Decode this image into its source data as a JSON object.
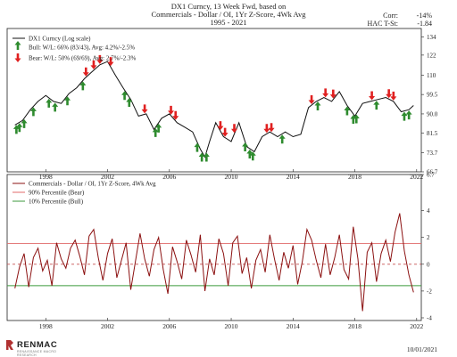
{
  "header": {
    "title_line1": "DX1 Curncy, 13 Week Fwd, based on",
    "title_line2": "Commercials - Dollar / OI, 1Yr Z-Score, 4Wk Avg",
    "title_line3": "1995 - 2021"
  },
  "stats": {
    "corr_label": "Corr:",
    "corr_value": "-14%",
    "hac_label": "HAC T-St:",
    "hac_value": "-1.84"
  },
  "footer": {
    "brand": "RENMAC",
    "brand_sub": "RENAISSANCE MACRO RESEARCH",
    "date": "10/01/2021"
  },
  "colors": {
    "price_line": "#111111",
    "bull": "#2e8b2e",
    "bear": "#e02020",
    "zscore_line": "#8b1010",
    "bear_threshold": "#e06a6a",
    "bull_threshold": "#3c9a3c",
    "zero_line": "#c85050",
    "logo_accent": "#b03030"
  },
  "chart_data": [
    {
      "type": "line",
      "panel": "top",
      "yscale": "log",
      "ylim": [
        66.7,
        140
      ],
      "xlim": [
        1995.5,
        2022.3
      ],
      "y_ticks": [
        "66.7",
        "73.7",
        "81.5",
        "90.0",
        "99.5",
        "110",
        "122",
        "134"
      ],
      "x_ticks": [
        "1998",
        "2002",
        "2006",
        "2010",
        "2014",
        "2018",
        "2022"
      ],
      "legend_position": "top-left",
      "legend": [
        {
          "label": "DX1 Curncy (Log scale)"
        },
        {
          "label": "Bull:  W/L: 66% (83/43), Avg: 4.2%/-2.5%"
        },
        {
          "label": "Bear:  W/L: 50% (69/69), Avg: 2.7%/-2.3%"
        }
      ],
      "series": [
        {
          "name": "DX1 Curncy (Log scale)",
          "x": [
            1996.0,
            1996.5,
            1997.0,
            1997.5,
            1998.0,
            1998.5,
            1999.0,
            1999.5,
            2000.0,
            2000.5,
            2001.0,
            2001.5,
            2002.0,
            2002.5,
            2003.0,
            2003.5,
            2004.0,
            2004.5,
            2005.0,
            2005.5,
            2006.0,
            2006.5,
            2007.0,
            2007.5,
            2008.0,
            2008.3,
            2008.6,
            2009.0,
            2009.5,
            2010.0,
            2010.5,
            2011.0,
            2011.5,
            2012.0,
            2012.5,
            2013.0,
            2013.5,
            2014.0,
            2014.5,
            2015.0,
            2015.5,
            2016.0,
            2016.5,
            2017.0,
            2017.5,
            2018.0,
            2018.5,
            2019.0,
            2019.5,
            2020.0,
            2020.5,
            2021.0,
            2021.5,
            2021.8
          ],
          "y": [
            85,
            87,
            92,
            96,
            99,
            96,
            95,
            100,
            103,
            108,
            112,
            116,
            118,
            110,
            103,
            97,
            89,
            90,
            83,
            88,
            90,
            86,
            84,
            82,
            75,
            72,
            78,
            86,
            80,
            78,
            86,
            76,
            74,
            80,
            82,
            80,
            82,
            80,
            81,
            93,
            96,
            98,
            96,
            101,
            94,
            89,
            95,
            96,
            97,
            98,
            96,
            91,
            92,
            94
          ]
        }
      ],
      "signals": {
        "bull_x": [
          1996.1,
          1996.3,
          1996.6,
          1997.2,
          1998.2,
          1998.6,
          1999.4,
          2000.4,
          2003.1,
          2003.4,
          2005.1,
          2005.3,
          2007.8,
          2008.1,
          2008.4,
          2010.9,
          2011.2,
          2011.4,
          2013.3,
          2015.6,
          2017.5,
          2017.9,
          2018.1,
          2019.4,
          2021.2,
          2021.5
        ],
        "bear_x": [
          2000.6,
          2001.1,
          2001.5,
          2002.2,
          2004.4,
          2006.1,
          2006.4,
          2009.3,
          2009.6,
          2010.2,
          2012.3,
          2012.6,
          2015.2,
          2016.1,
          2016.6,
          2019.1,
          2020.2,
          2020.5
        ]
      }
    },
    {
      "type": "line",
      "panel": "bottom",
      "ylim": [
        -4.2,
        6.7
      ],
      "y_ticks": [
        "6.7",
        "4",
        "2",
        "0",
        "-2",
        "-4"
      ],
      "x_ticks": [
        "1998",
        "2002",
        "2006",
        "2010",
        "2014",
        "2018",
        "2022"
      ],
      "legend_position": "top-left",
      "legend": [
        {
          "label": "Commercials - Dollar / OI, 1Yr Z-Score, 4Wk Avg"
        },
        {
          "label": "90% Percentile (Bear)"
        },
        {
          "label": "10% Percentile (Bull)"
        }
      ],
      "thresholds": {
        "bear": 1.55,
        "bull": -1.6,
        "zero": 0
      },
      "series": [
        {
          "name": "Commercials - Dollar / OI, 1Yr Z-Score, 4Wk Avg",
          "x": [
            1996.0,
            1996.3,
            1996.6,
            1996.9,
            1997.2,
            1997.5,
            1997.8,
            1998.1,
            1998.4,
            1998.7,
            1999.0,
            1999.3,
            1999.6,
            1999.9,
            2000.2,
            2000.5,
            2000.8,
            2001.1,
            2001.4,
            2001.7,
            2002.0,
            2002.3,
            2002.6,
            2002.9,
            2003.2,
            2003.5,
            2003.8,
            2004.1,
            2004.4,
            2004.7,
            2005.0,
            2005.3,
            2005.6,
            2005.9,
            2006.2,
            2006.5,
            2006.8,
            2007.1,
            2007.4,
            2007.7,
            2008.0,
            2008.3,
            2008.6,
            2008.9,
            2009.2,
            2009.5,
            2009.8,
            2010.1,
            2010.4,
            2010.7,
            2011.0,
            2011.3,
            2011.6,
            2011.9,
            2012.2,
            2012.5,
            2012.8,
            2013.1,
            2013.4,
            2013.7,
            2014.0,
            2014.3,
            2014.6,
            2014.9,
            2015.2,
            2015.5,
            2015.8,
            2016.1,
            2016.4,
            2016.7,
            2017.0,
            2017.3,
            2017.6,
            2017.9,
            2018.2,
            2018.5,
            2018.8,
            2019.1,
            2019.4,
            2019.7,
            2020.0,
            2020.3,
            2020.6,
            2020.9,
            2021.2,
            2021.5,
            2021.8
          ],
          "y": [
            -1.8,
            -0.2,
            0.8,
            -1.7,
            0.5,
            1.2,
            -0.5,
            0.3,
            -1.6,
            1.6,
            0.4,
            -0.3,
            1.2,
            1.8,
            0.6,
            -0.8,
            2.1,
            2.6,
            0.5,
            -1.2,
            0.8,
            1.9,
            -1.0,
            0.3,
            1.6,
            -1.9,
            0.2,
            2.3,
            0.4,
            -0.9,
            1.1,
            2.0,
            -0.4,
            -2.2,
            1.3,
            0.2,
            -1.1,
            1.8,
            0.7,
            -0.6,
            2.2,
            -2.0,
            0.4,
            -0.8,
            1.9,
            0.8,
            -1.6,
            1.6,
            2.1,
            -0.7,
            0.5,
            -1.8,
            0.3,
            1.1,
            -0.6,
            2.2,
            0.4,
            -1.2,
            0.9,
            -0.3,
            1.4,
            -1.5,
            0.2,
            2.6,
            1.8,
            0.3,
            -1.0,
            1.5,
            -0.8,
            0.5,
            2.2,
            -0.4,
            -1.1,
            2.8,
            0.4,
            -3.5,
            0.9,
            1.6,
            -1.3,
            0.8,
            1.8,
            0.2,
            2.4,
            3.8,
            1.0,
            -0.8,
            -2.1
          ]
        }
      ]
    }
  ]
}
